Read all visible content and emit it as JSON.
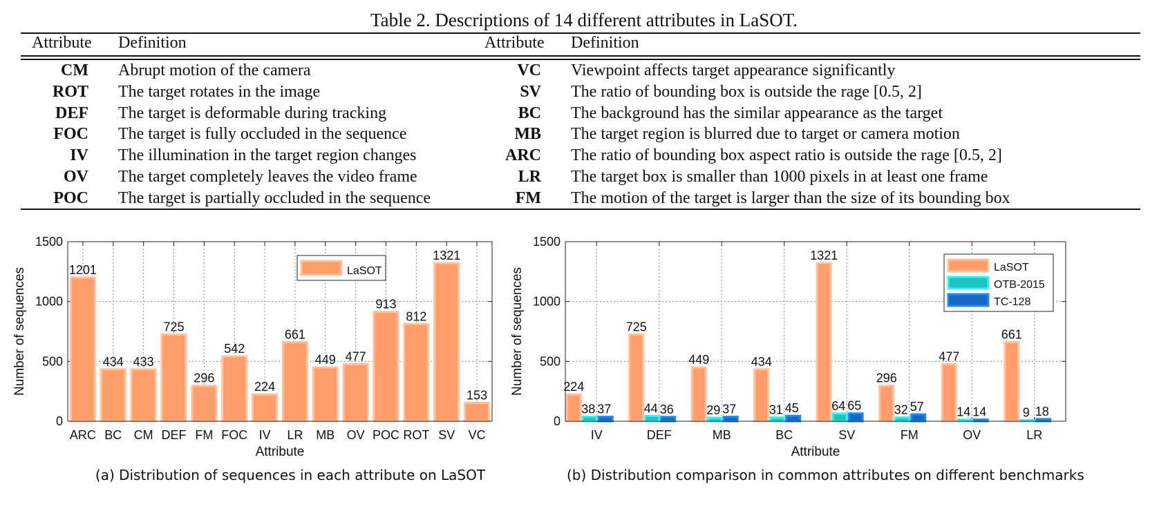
{
  "table": {
    "caption": "Table 2. Descriptions of 14 different attributes in LaSOT.",
    "headers": {
      "attribute": "Attribute",
      "definition": "Definition"
    },
    "left_rows": [
      {
        "abbr": "CM",
        "definition": "Abrupt motion of the camera"
      },
      {
        "abbr": "ROT",
        "definition": "The target rotates in the image"
      },
      {
        "abbr": "DEF",
        "definition": "The target is deformable during tracking"
      },
      {
        "abbr": "FOC",
        "definition": "The target is fully occluded in the sequence"
      },
      {
        "abbr": "IV",
        "definition": "The illumination in the target region changes"
      },
      {
        "abbr": "OV",
        "definition": "The target completely leaves the video frame"
      },
      {
        "abbr": "POC",
        "definition": "The target is partially occluded in the sequence"
      }
    ],
    "right_rows": [
      {
        "abbr": "VC",
        "definition": "Viewpoint affects target appearance significantly"
      },
      {
        "abbr": "SV",
        "definition": "The ratio of bounding box is outside the rage [0.5, 2]"
      },
      {
        "abbr": "BC",
        "definition": "The background has the similar appearance as the target"
      },
      {
        "abbr": "MB",
        "definition": "The target region is blurred due to target or camera motion"
      },
      {
        "abbr": "ARC",
        "definition": "The ratio of bounding box aspect ratio is outside the rage [0.5, 2]"
      },
      {
        "abbr": "LR",
        "definition": "The target box is smaller than 1000 pixels in at least one frame"
      },
      {
        "abbr": "FM",
        "definition": "The motion of the target is larger than the size of its bounding box"
      }
    ]
  },
  "colors": {
    "lasot": "#FF9E6B",
    "lasot_edge": "#FFC3A0",
    "otb": "#1BC4C0",
    "otb_edge": "#3FF0EA",
    "tc": "#1767C6",
    "tc_edge": "#1F8BF0"
  },
  "chart_data": [
    {
      "type": "bar",
      "caption": "(a) Distribution of sequences in each attribute on LaSOT",
      "xlabel": "Attribute",
      "ylabel": "Number of sequences",
      "ylim": [
        0,
        1500
      ],
      "yticks": [
        "0",
        "500",
        "1000",
        "1500"
      ],
      "grid": true,
      "legend": "top-right",
      "categories": [
        "ARC",
        "BC",
        "CM",
        "DEF",
        "FM",
        "FOC",
        "IV",
        "LR",
        "MB",
        "OV",
        "POC",
        "ROT",
        "SV",
        "VC"
      ],
      "series": [
        {
          "name": "LaSOT",
          "values": [
            1201,
            434,
            433,
            725,
            296,
            542,
            224,
            661,
            449,
            477,
            913,
            812,
            1321,
            153
          ]
        }
      ]
    },
    {
      "type": "bar",
      "caption": "(b) Distribution comparison in common attributes on different benchmarks",
      "xlabel": "Attribute",
      "ylabel": "Number of sequences",
      "ylim": [
        0,
        1500
      ],
      "yticks": [
        "0",
        "500",
        "1000",
        "1500"
      ],
      "grid": true,
      "legend": "top-right",
      "categories": [
        "IV",
        "DEF",
        "MB",
        "BC",
        "SV",
        "FM",
        "OV",
        "LR"
      ],
      "series": [
        {
          "name": "LaSOT",
          "values": [
            224,
            725,
            449,
            434,
            1321,
            296,
            477,
            661
          ]
        },
        {
          "name": "OTB-2015",
          "values": [
            38,
            44,
            29,
            31,
            64,
            32,
            14,
            9
          ]
        },
        {
          "name": "TC-128",
          "values": [
            37,
            36,
            37,
            45,
            65,
            57,
            14,
            18
          ]
        }
      ]
    }
  ]
}
